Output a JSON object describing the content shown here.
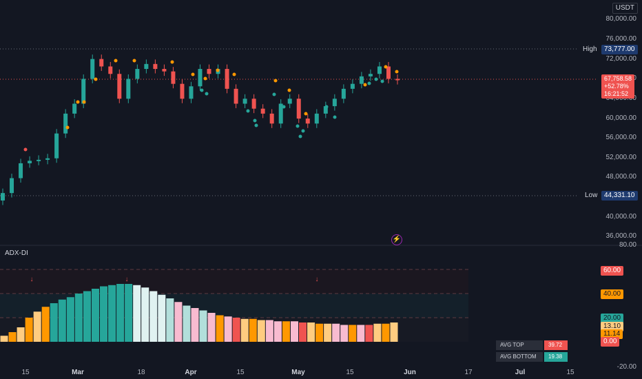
{
  "currency": "USDT",
  "price_axis": {
    "ticks": [
      "80,000.00",
      "76,000.00",
      "72,000.00",
      "68,000.00",
      "64,000.00",
      "60,000.00",
      "56,000.00",
      "52,000.00",
      "48,000.00",
      "40,000.00",
      "36,000.00"
    ],
    "high_label": "High",
    "high_value": "73,777.00",
    "low_label": "Low",
    "low_value": "44,331.10",
    "last_price": "67,758.58",
    "last_change": "+52.78%",
    "countdown": "16:21:52"
  },
  "indicator": {
    "name": "ADX-DI",
    "levels": [
      "60.00",
      "40.00",
      "20.00",
      "13.10",
      "11.14",
      "0.00"
    ],
    "bottom_tick": "-20.00",
    "top_tick": "80.00",
    "avg_top_label": "AVG TOP",
    "avg_top_value": "39.72",
    "avg_bottom_label": "AVG BOTTOM",
    "avg_bottom_value": "19.38",
    "arrow_symbol": "↓"
  },
  "time_axis": [
    "15",
    "Mar",
    "18",
    "Apr",
    "15",
    "May",
    "15",
    "Jun",
    "17",
    "Jul",
    "15"
  ],
  "colors": {
    "bg": "#131722",
    "up": "#26a69a",
    "down": "#ef5350",
    "teal": "#26a69a",
    "light_teal": "#b2dfdb",
    "pink": "#f8bbd0",
    "orange": "#ff9800",
    "peach": "#ffcc80",
    "high_bg": "#1e3a6e",
    "axis_text": "#b2b5be"
  },
  "chart_data": {
    "type": "candlestick",
    "series": [
      {
        "name": "price",
        "ohlc_close_sample": [
          45000,
          48000,
          51000,
          51500,
          51700,
          52000,
          57000,
          61000,
          63000,
          68000,
          72000,
          70500,
          69000,
          64000,
          68000,
          70000,
          71000,
          70000,
          69500,
          67000,
          64000,
          66500,
          70000,
          69000,
          70000,
          66000,
          63000,
          64000,
          62000,
          61000,
          59000,
          63000,
          64000,
          60000,
          59000,
          61000,
          62500,
          64000,
          66000,
          67000,
          68500,
          69000,
          70500,
          68000,
          67758.58
        ]
      },
      {
        "name": "ADX-DI",
        "values_sample": [
          5,
          8,
          12,
          20,
          25,
          29,
          32,
          35,
          37,
          40,
          42,
          44,
          46,
          47,
          48,
          48,
          47,
          45,
          42,
          39,
          36,
          33,
          30,
          28,
          26,
          24,
          22,
          21,
          20,
          19,
          19,
          18,
          18,
          17,
          17,
          17,
          16,
          16,
          15,
          15,
          15,
          14,
          14,
          14,
          14,
          15,
          15,
          16
        ]
      }
    ],
    "ylim": [
      36000,
      82000
    ],
    "indicator_ylim": [
      -20,
      80
    ]
  }
}
